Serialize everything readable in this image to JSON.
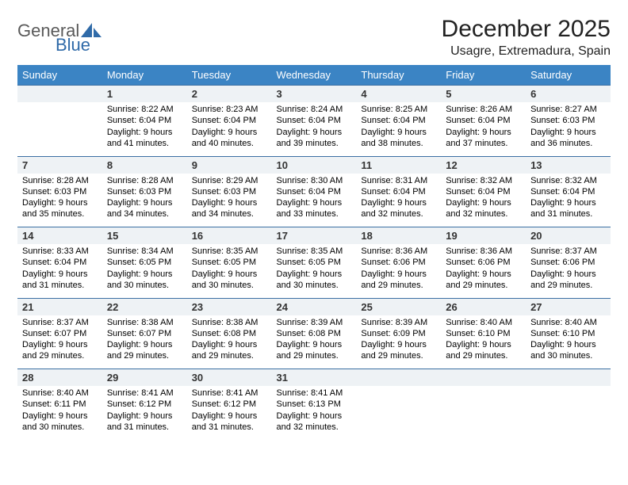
{
  "brand": {
    "general": "General",
    "blue": "Blue"
  },
  "colors": {
    "header_bg": "#3b84c4",
    "header_text": "#ffffff",
    "daynum_bg": "#eef2f5",
    "rule": "#3b6fa3",
    "logo_gray": "#5a5a5a",
    "logo_blue": "#2f6aa8"
  },
  "title": "December 2025",
  "location": "Usagre, Extremadura, Spain",
  "day_headers": [
    "Sunday",
    "Monday",
    "Tuesday",
    "Wednesday",
    "Thursday",
    "Friday",
    "Saturday"
  ],
  "weeks": [
    [
      null,
      {
        "n": "1",
        "sr": "Sunrise: 8:22 AM",
        "ss": "Sunset: 6:04 PM",
        "dl": "Daylight: 9 hours and 41 minutes."
      },
      {
        "n": "2",
        "sr": "Sunrise: 8:23 AM",
        "ss": "Sunset: 6:04 PM",
        "dl": "Daylight: 9 hours and 40 minutes."
      },
      {
        "n": "3",
        "sr": "Sunrise: 8:24 AM",
        "ss": "Sunset: 6:04 PM",
        "dl": "Daylight: 9 hours and 39 minutes."
      },
      {
        "n": "4",
        "sr": "Sunrise: 8:25 AM",
        "ss": "Sunset: 6:04 PM",
        "dl": "Daylight: 9 hours and 38 minutes."
      },
      {
        "n": "5",
        "sr": "Sunrise: 8:26 AM",
        "ss": "Sunset: 6:04 PM",
        "dl": "Daylight: 9 hours and 37 minutes."
      },
      {
        "n": "6",
        "sr": "Sunrise: 8:27 AM",
        "ss": "Sunset: 6:03 PM",
        "dl": "Daylight: 9 hours and 36 minutes."
      }
    ],
    [
      {
        "n": "7",
        "sr": "Sunrise: 8:28 AM",
        "ss": "Sunset: 6:03 PM",
        "dl": "Daylight: 9 hours and 35 minutes."
      },
      {
        "n": "8",
        "sr": "Sunrise: 8:28 AM",
        "ss": "Sunset: 6:03 PM",
        "dl": "Daylight: 9 hours and 34 minutes."
      },
      {
        "n": "9",
        "sr": "Sunrise: 8:29 AM",
        "ss": "Sunset: 6:03 PM",
        "dl": "Daylight: 9 hours and 34 minutes."
      },
      {
        "n": "10",
        "sr": "Sunrise: 8:30 AM",
        "ss": "Sunset: 6:04 PM",
        "dl": "Daylight: 9 hours and 33 minutes."
      },
      {
        "n": "11",
        "sr": "Sunrise: 8:31 AM",
        "ss": "Sunset: 6:04 PM",
        "dl": "Daylight: 9 hours and 32 minutes."
      },
      {
        "n": "12",
        "sr": "Sunrise: 8:32 AM",
        "ss": "Sunset: 6:04 PM",
        "dl": "Daylight: 9 hours and 32 minutes."
      },
      {
        "n": "13",
        "sr": "Sunrise: 8:32 AM",
        "ss": "Sunset: 6:04 PM",
        "dl": "Daylight: 9 hours and 31 minutes."
      }
    ],
    [
      {
        "n": "14",
        "sr": "Sunrise: 8:33 AM",
        "ss": "Sunset: 6:04 PM",
        "dl": "Daylight: 9 hours and 31 minutes."
      },
      {
        "n": "15",
        "sr": "Sunrise: 8:34 AM",
        "ss": "Sunset: 6:05 PM",
        "dl": "Daylight: 9 hours and 30 minutes."
      },
      {
        "n": "16",
        "sr": "Sunrise: 8:35 AM",
        "ss": "Sunset: 6:05 PM",
        "dl": "Daylight: 9 hours and 30 minutes."
      },
      {
        "n": "17",
        "sr": "Sunrise: 8:35 AM",
        "ss": "Sunset: 6:05 PM",
        "dl": "Daylight: 9 hours and 30 minutes."
      },
      {
        "n": "18",
        "sr": "Sunrise: 8:36 AM",
        "ss": "Sunset: 6:06 PM",
        "dl": "Daylight: 9 hours and 29 minutes."
      },
      {
        "n": "19",
        "sr": "Sunrise: 8:36 AM",
        "ss": "Sunset: 6:06 PM",
        "dl": "Daylight: 9 hours and 29 minutes."
      },
      {
        "n": "20",
        "sr": "Sunrise: 8:37 AM",
        "ss": "Sunset: 6:06 PM",
        "dl": "Daylight: 9 hours and 29 minutes."
      }
    ],
    [
      {
        "n": "21",
        "sr": "Sunrise: 8:37 AM",
        "ss": "Sunset: 6:07 PM",
        "dl": "Daylight: 9 hours and 29 minutes."
      },
      {
        "n": "22",
        "sr": "Sunrise: 8:38 AM",
        "ss": "Sunset: 6:07 PM",
        "dl": "Daylight: 9 hours and 29 minutes."
      },
      {
        "n": "23",
        "sr": "Sunrise: 8:38 AM",
        "ss": "Sunset: 6:08 PM",
        "dl": "Daylight: 9 hours and 29 minutes."
      },
      {
        "n": "24",
        "sr": "Sunrise: 8:39 AM",
        "ss": "Sunset: 6:08 PM",
        "dl": "Daylight: 9 hours and 29 minutes."
      },
      {
        "n": "25",
        "sr": "Sunrise: 8:39 AM",
        "ss": "Sunset: 6:09 PM",
        "dl": "Daylight: 9 hours and 29 minutes."
      },
      {
        "n": "26",
        "sr": "Sunrise: 8:40 AM",
        "ss": "Sunset: 6:10 PM",
        "dl": "Daylight: 9 hours and 29 minutes."
      },
      {
        "n": "27",
        "sr": "Sunrise: 8:40 AM",
        "ss": "Sunset: 6:10 PM",
        "dl": "Daylight: 9 hours and 30 minutes."
      }
    ],
    [
      {
        "n": "28",
        "sr": "Sunrise: 8:40 AM",
        "ss": "Sunset: 6:11 PM",
        "dl": "Daylight: 9 hours and 30 minutes."
      },
      {
        "n": "29",
        "sr": "Sunrise: 8:41 AM",
        "ss": "Sunset: 6:12 PM",
        "dl": "Daylight: 9 hours and 31 minutes."
      },
      {
        "n": "30",
        "sr": "Sunrise: 8:41 AM",
        "ss": "Sunset: 6:12 PM",
        "dl": "Daylight: 9 hours and 31 minutes."
      },
      {
        "n": "31",
        "sr": "Sunrise: 8:41 AM",
        "ss": "Sunset: 6:13 PM",
        "dl": "Daylight: 9 hours and 32 minutes."
      },
      null,
      null,
      null
    ]
  ]
}
